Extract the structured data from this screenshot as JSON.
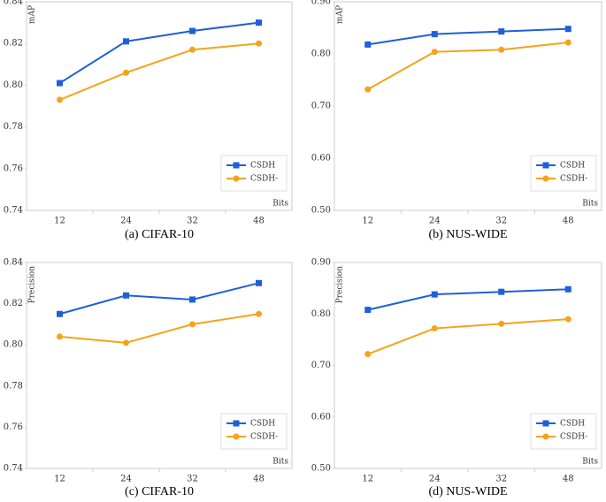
{
  "chart_data": [
    {
      "type": "line",
      "title": "(a) CIFAR-10",
      "y_label": "mAP",
      "x_label": "Bits",
      "categories": [
        "12",
        "24",
        "32",
        "48"
      ],
      "series": [
        {
          "name": "CSDH",
          "color": "#1f5fd9",
          "marker": "square",
          "values": [
            0.801,
            0.821,
            0.826,
            0.83
          ]
        },
        {
          "name": "CSDH-",
          "color": "#f5a31a",
          "marker": "circle",
          "values": [
            0.793,
            0.806,
            0.817,
            0.82
          ]
        }
      ],
      "ylim": [
        0.74,
        0.84
      ],
      "yticks": [
        0.74,
        0.76,
        0.78,
        {
          "value": 0.8,
          "label": "0.80"
        },
        0.82,
        0.84
      ],
      "legend": "lower right",
      "grid": false
    },
    {
      "type": "line",
      "title": "(b) NUS-WIDE",
      "y_label": "mAP",
      "x_label": "Bits",
      "categories": [
        "12",
        "24",
        "32",
        "48"
      ],
      "series": [
        {
          "name": "CSDH",
          "color": "#1f5fd9",
          "marker": "square",
          "values": [
            0.818,
            0.838,
            0.843,
            0.848
          ]
        },
        {
          "name": "CSDH-",
          "color": "#f5a31a",
          "marker": "circle",
          "values": [
            0.732,
            0.804,
            0.808,
            0.822
          ]
        }
      ],
      "ylim": [
        0.5,
        0.9
      ],
      "yticks": [
        {
          "value": 0.5,
          "label": "0.50"
        },
        {
          "value": 0.6,
          "label": "0.60"
        },
        {
          "value": 0.7,
          "label": "0.70"
        },
        {
          "value": 0.8,
          "label": "0.80"
        },
        {
          "value": 0.9,
          "label": "0.90"
        }
      ],
      "legend": "lower right",
      "grid": false
    },
    {
      "type": "line",
      "title": "(c) CIFAR-10",
      "y_label": "Precision",
      "x_label": "Bits",
      "categories": [
        "12",
        "24",
        "32",
        "48"
      ],
      "series": [
        {
          "name": "CSDH",
          "color": "#1f5fd9",
          "marker": "square",
          "values": [
            0.815,
            0.824,
            0.822,
            0.83
          ]
        },
        {
          "name": "CSDH-",
          "color": "#f5a31a",
          "marker": "circle",
          "values": [
            0.804,
            0.801,
            0.81,
            0.815
          ]
        }
      ],
      "ylim": [
        0.74,
        0.84
      ],
      "yticks": [
        0.74,
        0.76,
        0.78,
        {
          "value": 0.8,
          "label": "0.80"
        },
        0.82,
        0.84
      ],
      "legend": "lower right",
      "grid": false
    },
    {
      "type": "line",
      "title": "(d) NUS-WIDE",
      "y_label": "Precision",
      "x_label": "Bits",
      "categories": [
        "12",
        "24",
        "32",
        "48"
      ],
      "series": [
        {
          "name": "CSDH",
          "color": "#1f5fd9",
          "marker": "square",
          "values": [
            0.808,
            0.838,
            0.843,
            0.848
          ]
        },
        {
          "name": "CSDH-",
          "color": "#f5a31a",
          "marker": "circle",
          "values": [
            0.722,
            0.772,
            0.781,
            0.79
          ]
        }
      ],
      "ylim": [
        0.5,
        0.9
      ],
      "yticks": [
        {
          "value": 0.5,
          "label": "0.50"
        },
        {
          "value": 0.6,
          "label": "0.60"
        },
        {
          "value": 0.7,
          "label": "0.70"
        },
        {
          "value": 0.8,
          "label": "0.80"
        },
        {
          "value": 0.9,
          "label": "0.90"
        }
      ],
      "legend": "lower right",
      "grid": false
    }
  ]
}
